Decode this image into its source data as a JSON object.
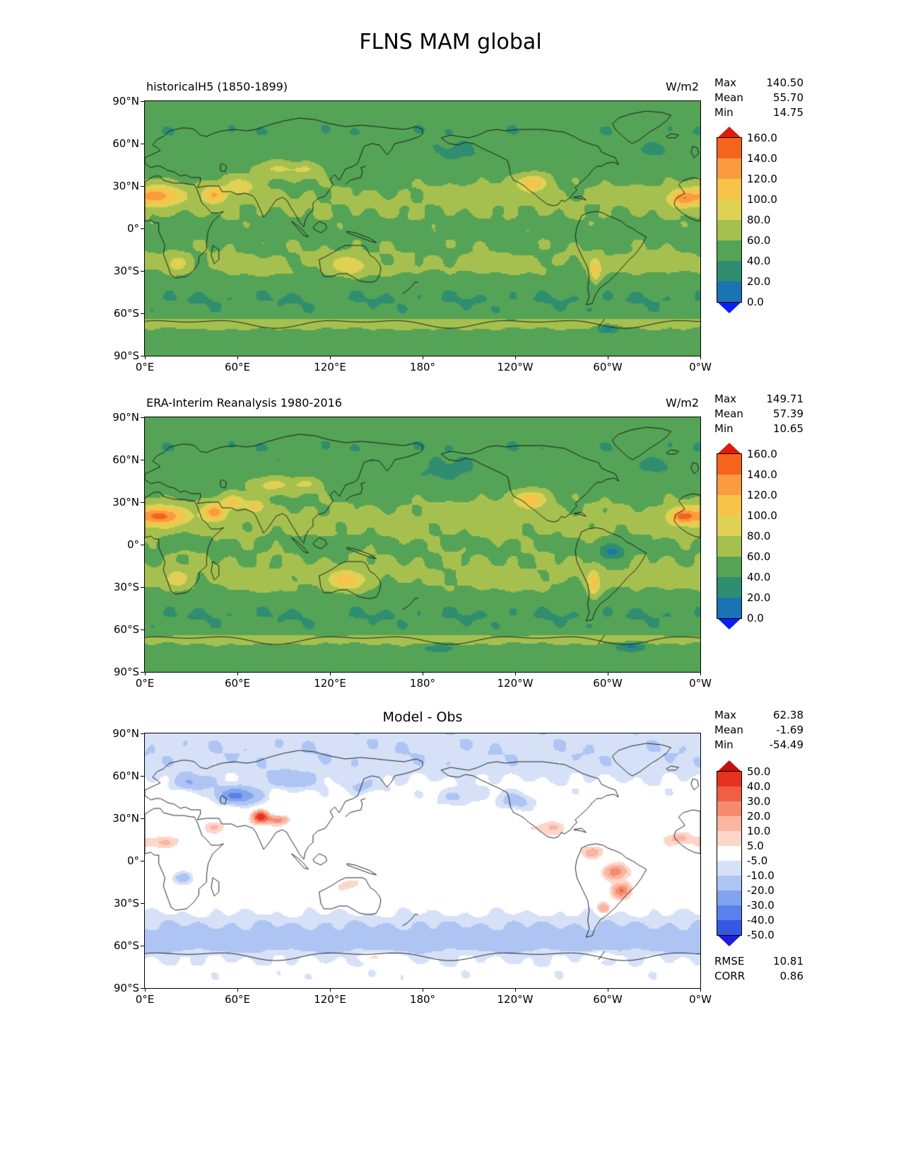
{
  "title": "FLNS MAM global",
  "labels": {
    "max": "Max",
    "mean": "Mean",
    "min": "Min",
    "rmse": "RMSE",
    "corr": "CORR"
  },
  "axis": {
    "lat_tick_labels": [
      "90°N",
      "60°N",
      "30°N",
      "0°",
      "30°S",
      "60°S",
      "90°S"
    ],
    "lon_tick_labels": [
      "0°E",
      "60°E",
      "120°E",
      "180°",
      "120°W",
      "60°W",
      "0°W"
    ]
  },
  "chart_data": [
    {
      "type": "heatmap",
      "panel": "top",
      "title": "historicalH5 (1850-1899)",
      "units": "W/m2",
      "stats": {
        "max": "140.50",
        "mean": "55.70",
        "min": "14.75"
      },
      "x_tick_labels": [
        "0°E",
        "60°E",
        "120°E",
        "180°",
        "120°W",
        "60°W",
        "0°W"
      ],
      "y_tick_labels": [
        "90°N",
        "60°N",
        "30°N",
        "0°",
        "30°S",
        "60°S",
        "90°S"
      ],
      "colorbar": {
        "levels": [
          0,
          20,
          40,
          60,
          80,
          100,
          120,
          140,
          160
        ],
        "tick_labels": [
          "160.0",
          "140.0",
          "120.0",
          "100.0",
          "80.0",
          "60.0",
          "40.0",
          "20.0",
          "0.0"
        ],
        "segment_colors_top_to_bottom": [
          "#f4641d",
          "#fb9b3f",
          "#f7c348",
          "#ded153",
          "#a6c050",
          "#55a356",
          "#2f8d70",
          "#1a73b2"
        ],
        "arrow_top_color": "#dd1c0c",
        "arrow_bottom_color": "#0b1ff2"
      },
      "approx_base_by_lat": [
        [
          -90,
          52
        ],
        [
          -78,
          50
        ],
        [
          -70,
          56
        ],
        [
          -66,
          60
        ],
        [
          -62,
          44
        ],
        [
          -50,
          40
        ],
        [
          -42,
          44
        ],
        [
          -32,
          56
        ],
        [
          -22,
          60
        ],
        [
          -10,
          58
        ],
        [
          0,
          56
        ],
        [
          10,
          60
        ],
        [
          20,
          62
        ],
        [
          32,
          58
        ],
        [
          45,
          52
        ],
        [
          58,
          45
        ],
        [
          68,
          42
        ],
        [
          78,
          44
        ],
        [
          90,
          44
        ]
      ],
      "approx_hotspots": [
        [
          8,
          23,
          16,
          7,
          70
        ],
        [
          348,
          21,
          9,
          6,
          62
        ],
        [
          45,
          24,
          8,
          6,
          62
        ],
        [
          62,
          30,
          9,
          6,
          40
        ],
        [
          85,
          42,
          14,
          6,
          28
        ],
        [
          105,
          42,
          10,
          5,
          24
        ],
        [
          21,
          -25,
          7,
          6,
          34
        ],
        [
          132,
          -26,
          12,
          7,
          40
        ],
        [
          251,
          32,
          10,
          6,
          55
        ],
        [
          292,
          -30,
          4,
          9,
          46
        ],
        [
          215,
          25,
          20,
          6,
          10
        ],
        [
          320,
          25,
          15,
          5,
          10
        ],
        [
          330,
          -25,
          28,
          6,
          14
        ],
        [
          70,
          -28,
          24,
          6,
          12
        ],
        [
          230,
          -27,
          28,
          6,
          10
        ],
        [
          160,
          -30,
          18,
          5,
          8
        ],
        [
          200,
          52,
          18,
          7,
          -12
        ],
        [
          330,
          55,
          12,
          5,
          -10
        ],
        [
          20,
          2,
          8,
          4,
          -12
        ],
        [
          305,
          -5,
          8,
          5,
          -8
        ],
        [
          60,
          -67,
          60,
          4,
          16
        ],
        [
          180,
          -67,
          60,
          4,
          16
        ],
        [
          300,
          -67,
          60,
          4,
          14
        ],
        [
          300,
          -71,
          8,
          3,
          -40
        ]
      ]
    },
    {
      "type": "heatmap",
      "panel": "middle",
      "title": "ERA-Interim Reanalysis 1980-2016",
      "units": "W/m2",
      "stats": {
        "max": "149.71",
        "mean": "57.39",
        "min": "10.65"
      },
      "x_tick_labels": [
        "0°E",
        "60°E",
        "120°E",
        "180°",
        "120°W",
        "60°W",
        "0°W"
      ],
      "y_tick_labels": [
        "90°N",
        "60°N",
        "30°N",
        "0°",
        "30°S",
        "60°S",
        "90°S"
      ],
      "colorbar": {
        "levels": [
          0,
          20,
          40,
          60,
          80,
          100,
          120,
          140,
          160
        ],
        "tick_labels": [
          "160.0",
          "140.0",
          "120.0",
          "100.0",
          "80.0",
          "60.0",
          "40.0",
          "20.0",
          "0.0"
        ],
        "segment_colors_top_to_bottom": [
          "#f4641d",
          "#fb9b3f",
          "#f7c348",
          "#ded153",
          "#a6c050",
          "#55a356",
          "#2f8d70",
          "#1a73b2"
        ],
        "arrow_top_color": "#dd1c0c",
        "arrow_bottom_color": "#0b1ff2"
      },
      "approx_base_by_lat": [
        [
          -90,
          50
        ],
        [
          -78,
          48
        ],
        [
          -70,
          54
        ],
        [
          -66,
          58
        ],
        [
          -62,
          44
        ],
        [
          -50,
          40
        ],
        [
          -42,
          44
        ],
        [
          -32,
          57
        ],
        [
          -22,
          62
        ],
        [
          -10,
          60
        ],
        [
          0,
          58
        ],
        [
          10,
          62
        ],
        [
          20,
          63
        ],
        [
          32,
          58
        ],
        [
          45,
          52
        ],
        [
          58,
          44
        ],
        [
          68,
          42
        ],
        [
          78,
          44
        ],
        [
          90,
          44
        ]
      ],
      "approx_hotspots": [
        [
          10,
          20,
          16,
          7,
          85
        ],
        [
          348,
          20,
          9,
          6,
          75
        ],
        [
          45,
          23,
          8,
          6,
          70
        ],
        [
          58,
          30,
          8,
          5,
          45
        ],
        [
          72,
          27,
          5,
          4,
          50
        ],
        [
          82,
          42,
          14,
          6,
          33
        ],
        [
          105,
          43,
          10,
          5,
          28
        ],
        [
          21,
          -24,
          7,
          6,
          40
        ],
        [
          131,
          -25,
          12,
          7,
          50
        ],
        [
          250,
          32,
          10,
          6,
          60
        ],
        [
          291,
          -28,
          4,
          10,
          50
        ],
        [
          303,
          -5,
          9,
          6,
          -45
        ],
        [
          20,
          2,
          8,
          4,
          -18
        ],
        [
          115,
          0,
          12,
          5,
          -12
        ],
        [
          195,
          50,
          20,
          8,
          -14
        ],
        [
          330,
          55,
          12,
          5,
          -12
        ],
        [
          340,
          -25,
          24,
          6,
          10
        ],
        [
          75,
          -28,
          22,
          6,
          10
        ],
        [
          235,
          -28,
          24,
          6,
          8
        ],
        [
          215,
          25,
          18,
          6,
          8
        ],
        [
          60,
          -67,
          60,
          4,
          15
        ],
        [
          180,
          -67,
          60,
          4,
          15
        ],
        [
          300,
          -67,
          60,
          4,
          13
        ],
        [
          315,
          -72,
          10,
          3,
          -38
        ],
        [
          190,
          -73,
          10,
          3,
          -25
        ]
      ]
    },
    {
      "type": "heatmap",
      "panel": "bottom",
      "title": "Model - Obs",
      "units": "",
      "stats": {
        "max": "62.38",
        "mean": "-1.69",
        "min": "-54.49",
        "rmse": "10.81",
        "corr": "0.86"
      },
      "x_tick_labels": [
        "0°E",
        "60°E",
        "120°E",
        "180°",
        "120°W",
        "60°W",
        "0°W"
      ],
      "y_tick_labels": [
        "90°N",
        "60°N",
        "30°N",
        "0°",
        "30°S",
        "60°S",
        "90°S"
      ],
      "colorbar": {
        "levels": [
          -50,
          -40,
          -30,
          -20,
          -10,
          -5,
          5,
          10,
          20,
          30,
          40,
          50
        ],
        "tick_labels": [
          "50.0",
          "40.0",
          "30.0",
          "20.0",
          "10.0",
          "5.0",
          "-5.0",
          "-10.0",
          "-20.0",
          "-30.0",
          "-40.0",
          "-50.0"
        ],
        "segment_colors_top_to_bottom": [
          "#e73121",
          "#ef5f43",
          "#f48b70",
          "#f9b5a2",
          "#fcd6c9",
          "#ffffff",
          "#d6e1f8",
          "#aec5f4",
          "#82a4ef",
          "#5a81ea",
          "#3558e4"
        ],
        "arrow_top_color": "#c9100e",
        "arrow_bottom_color": "#1d1de0"
      },
      "approx_base_by_lat": [
        [
          -90,
          -2
        ],
        [
          -76,
          -3
        ],
        [
          -68,
          -6
        ],
        [
          -60,
          -14
        ],
        [
          -50,
          -13
        ],
        [
          -42,
          -8
        ],
        [
          -30,
          0
        ],
        [
          -15,
          1
        ],
        [
          0,
          0
        ],
        [
          15,
          2
        ],
        [
          30,
          0
        ],
        [
          45,
          -2
        ],
        [
          55,
          -4
        ],
        [
          62,
          -7
        ],
        [
          75,
          -9
        ],
        [
          90,
          -8
        ]
      ],
      "approx_hotspots": [
        [
          75,
          31,
          5,
          4,
          48
        ],
        [
          86,
          29,
          7,
          3,
          26
        ],
        [
          60,
          46,
          14,
          6,
          -30
        ],
        [
          30,
          55,
          12,
          5,
          -16
        ],
        [
          95,
          57,
          18,
          6,
          -12
        ],
        [
          140,
          52,
          10,
          5,
          -10
        ],
        [
          305,
          -8,
          7,
          5,
          26
        ],
        [
          309,
          -21,
          6,
          5,
          30
        ],
        [
          297,
          -34,
          4,
          4,
          20
        ],
        [
          290,
          6,
          6,
          4,
          14
        ],
        [
          263,
          24,
          9,
          5,
          10
        ],
        [
          240,
          42,
          12,
          6,
          -12
        ],
        [
          203,
          45,
          14,
          6,
          -10
        ],
        [
          10,
          13,
          14,
          4,
          10
        ],
        [
          347,
          16,
          8,
          4,
          12
        ],
        [
          45,
          24,
          8,
          4,
          10
        ],
        [
          25,
          -12,
          8,
          5,
          -14
        ],
        [
          132,
          -17,
          9,
          4,
          8
        ],
        [
          150,
          -68,
          12,
          3,
          10
        ],
        [
          295,
          -67,
          8,
          3,
          12
        ]
      ]
    }
  ]
}
